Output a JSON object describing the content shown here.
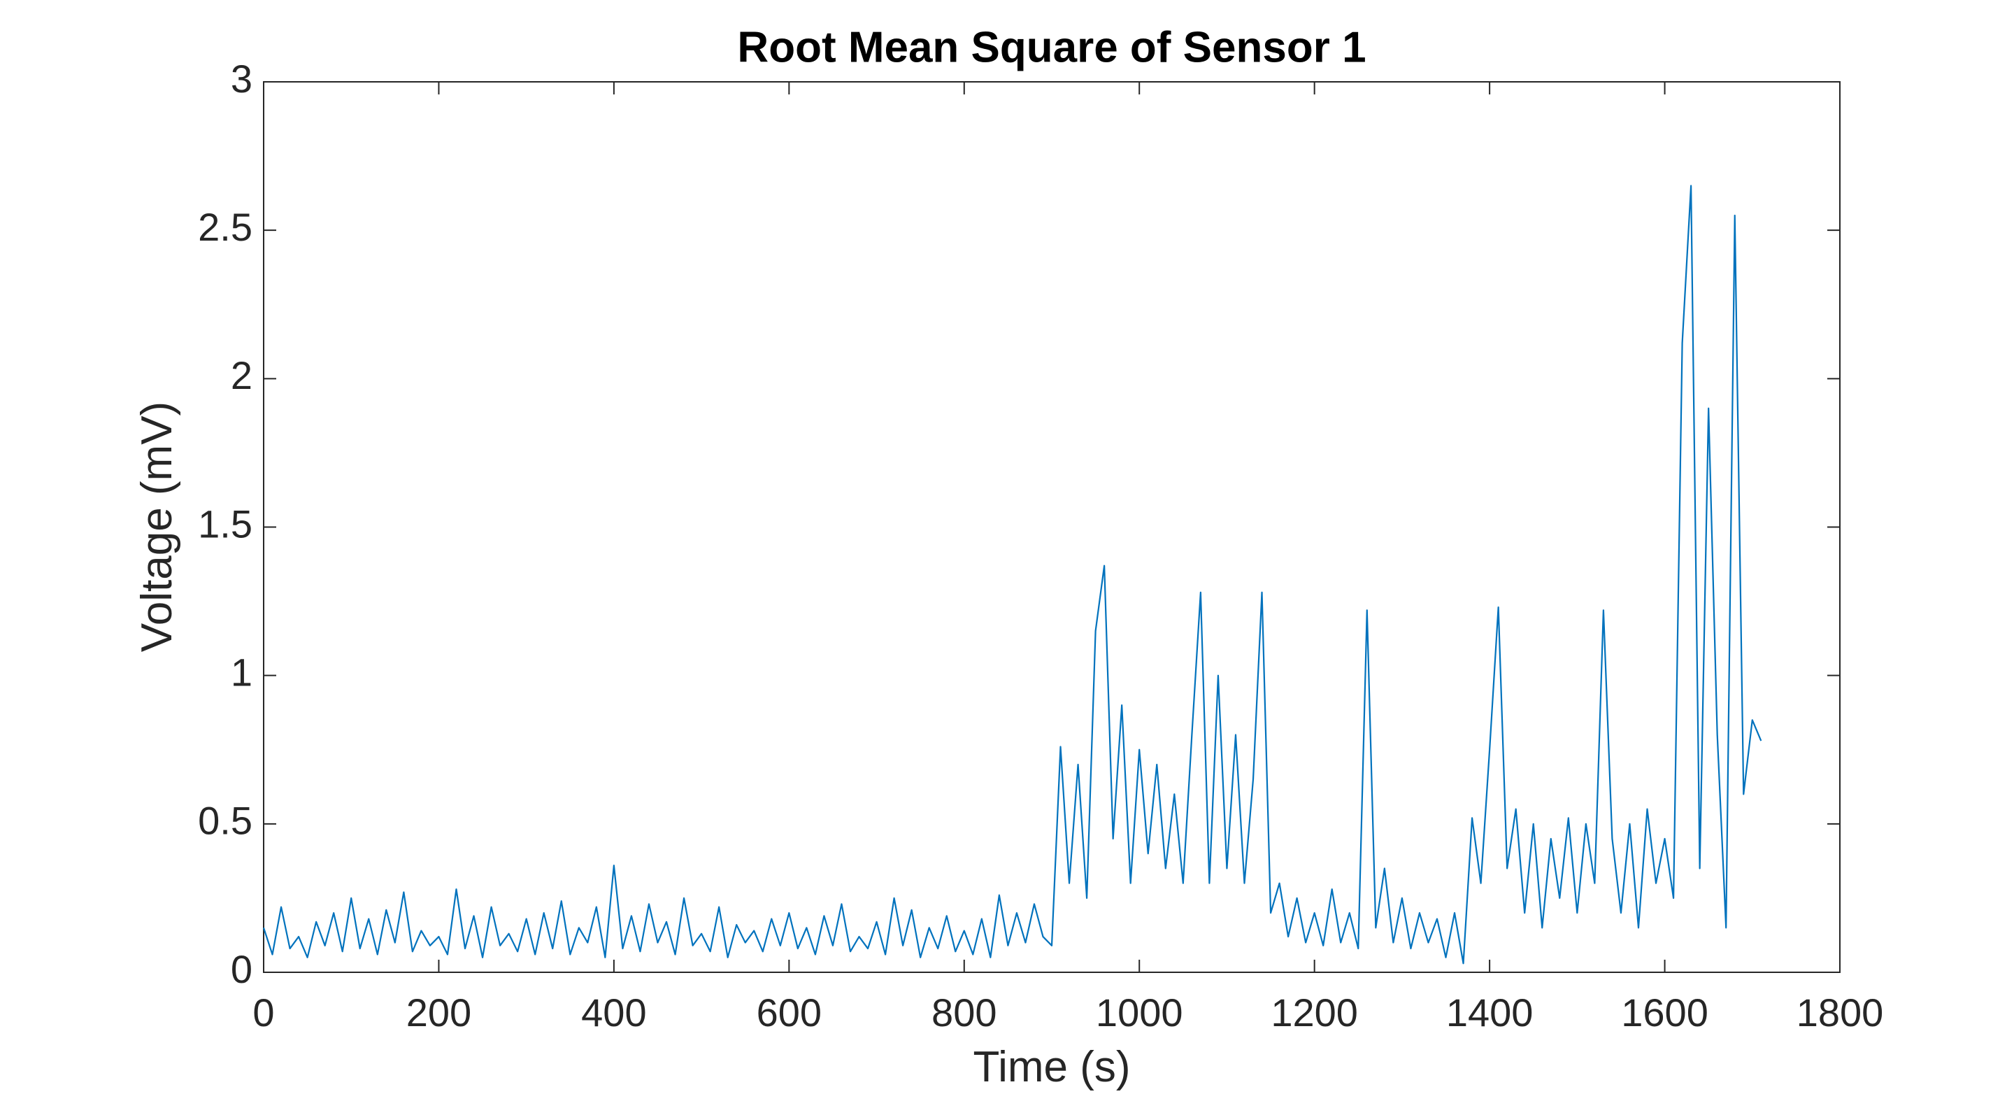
{
  "chart_data": {
    "type": "line",
    "title": "Root Mean Square of Sensor 1",
    "x_label": "Time (s)",
    "y_label": "Voltage (mV)",
    "xlim": [
      0,
      1800
    ],
    "xticks": [
      0,
      200,
      400,
      600,
      800,
      1000,
      1200,
      1400,
      1600,
      1800
    ],
    "ylim": [
      0,
      3
    ],
    "yticks": [
      0,
      0.5,
      1,
      1.5,
      2,
      2.5,
      3
    ],
    "grid": false,
    "x": [
      0,
      10,
      20,
      30,
      40,
      50,
      60,
      70,
      80,
      90,
      100,
      110,
      120,
      130,
      140,
      150,
      160,
      170,
      180,
      190,
      200,
      210,
      220,
      230,
      240,
      250,
      260,
      270,
      280,
      290,
      300,
      310,
      320,
      330,
      340,
      350,
      360,
      370,
      380,
      390,
      400,
      410,
      420,
      430,
      440,
      450,
      460,
      470,
      480,
      490,
      500,
      510,
      520,
      530,
      540,
      550,
      560,
      570,
      580,
      590,
      600,
      610,
      620,
      630,
      640,
      650,
      660,
      670,
      680,
      690,
      700,
      710,
      720,
      730,
      740,
      750,
      760,
      770,
      780,
      790,
      800,
      810,
      820,
      830,
      840,
      850,
      860,
      870,
      880,
      890,
      900,
      910,
      920,
      930,
      940,
      950,
      960,
      970,
      980,
      990,
      1000,
      1010,
      1020,
      1030,
      1040,
      1050,
      1060,
      1070,
      1080,
      1090,
      1100,
      1110,
      1120,
      1130,
      1140,
      1150,
      1160,
      1170,
      1180,
      1190,
      1200,
      1210,
      1220,
      1230,
      1240,
      1250,
      1260,
      1270,
      1280,
      1290,
      1300,
      1310,
      1320,
      1330,
      1340,
      1350,
      1360,
      1370,
      1380,
      1390,
      1400,
      1410,
      1420,
      1430,
      1440,
      1450,
      1460,
      1470,
      1480,
      1490,
      1500,
      1510,
      1520,
      1530,
      1540,
      1550,
      1560,
      1570,
      1580,
      1590,
      1600,
      1610,
      1620,
      1630,
      1640,
      1650,
      1660,
      1670,
      1680,
      1690,
      1700,
      1710
    ],
    "series": [
      {
        "color": "#0072bd",
        "values": [
          0.15,
          0.06,
          0.22,
          0.08,
          0.12,
          0.05,
          0.17,
          0.09,
          0.2,
          0.07,
          0.25,
          0.08,
          0.18,
          0.06,
          0.21,
          0.1,
          0.27,
          0.07,
          0.14,
          0.09,
          0.12,
          0.06,
          0.28,
          0.08,
          0.19,
          0.05,
          0.22,
          0.09,
          0.13,
          0.07,
          0.18,
          0.06,
          0.2,
          0.08,
          0.24,
          0.06,
          0.15,
          0.1,
          0.22,
          0.05,
          0.36,
          0.08,
          0.19,
          0.07,
          0.23,
          0.1,
          0.17,
          0.06,
          0.25,
          0.09,
          0.13,
          0.07,
          0.22,
          0.05,
          0.16,
          0.1,
          0.14,
          0.07,
          0.18,
          0.09,
          0.2,
          0.08,
          0.15,
          0.06,
          0.19,
          0.09,
          0.23,
          0.07,
          0.12,
          0.08,
          0.17,
          0.06,
          0.25,
          0.09,
          0.21,
          0.05,
          0.15,
          0.08,
          0.19,
          0.07,
          0.14,
          0.06,
          0.18,
          0.05,
          0.26,
          0.09,
          0.2,
          0.1,
          0.23,
          0.12,
          0.09,
          0.76,
          0.3,
          0.7,
          0.25,
          1.15,
          1.37,
          0.45,
          0.9,
          0.3,
          0.75,
          0.4,
          0.7,
          0.35,
          0.6,
          0.3,
          0.8,
          1.28,
          0.3,
          1.0,
          0.35,
          0.8,
          0.3,
          0.65,
          1.28,
          0.2,
          0.3,
          0.12,
          0.25,
          0.1,
          0.2,
          0.09,
          0.28,
          0.1,
          0.2,
          0.08,
          1.22,
          0.15,
          0.35,
          0.1,
          0.25,
          0.08,
          0.2,
          0.1,
          0.18,
          0.05,
          0.2,
          0.03,
          0.52,
          0.3,
          0.75,
          1.23,
          0.35,
          0.55,
          0.2,
          0.5,
          0.15,
          0.45,
          0.25,
          0.52,
          0.2,
          0.5,
          0.3,
          1.22,
          0.45,
          0.2,
          0.5,
          0.15,
          0.55,
          0.3,
          0.45,
          0.25,
          2.12,
          2.65,
          0.35,
          1.9,
          0.8,
          0.15,
          2.55,
          0.6,
          0.85,
          0.78
        ]
      }
    ]
  }
}
